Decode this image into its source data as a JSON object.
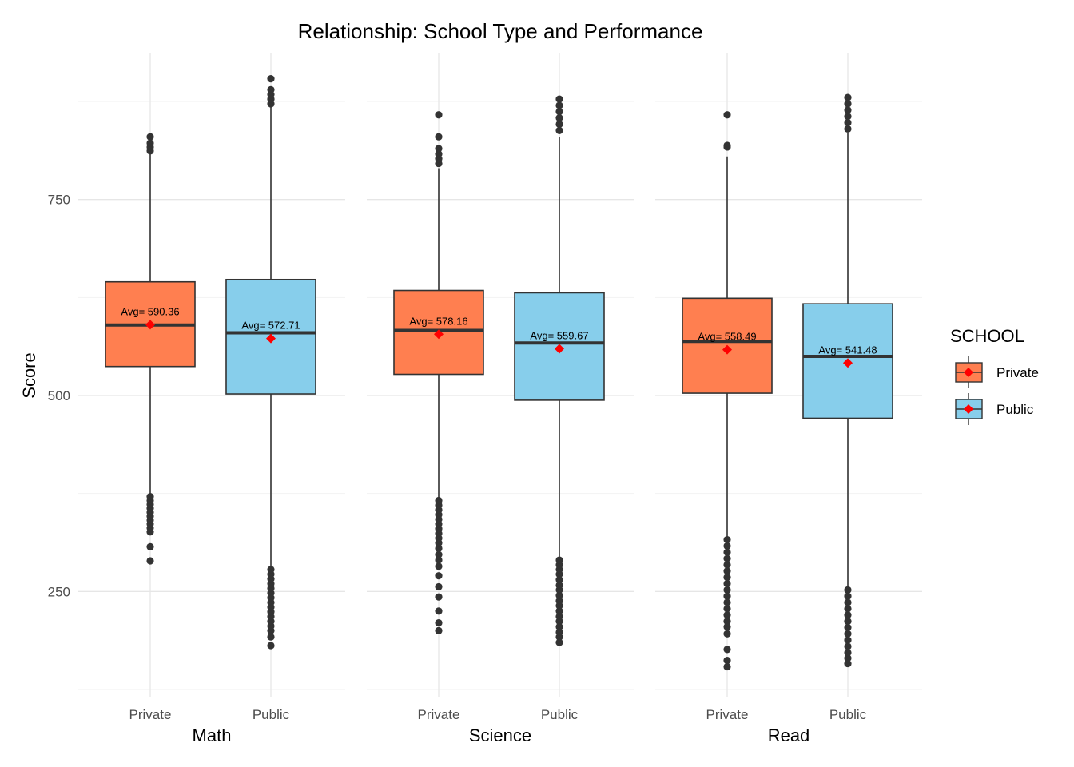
{
  "chart_data": {
    "type": "box",
    "title": "Relationship: School Type and Performance",
    "ylabel": "Score",
    "ylim": [
      120,
      920
    ],
    "yticks": [
      250,
      500,
      750
    ],
    "ygrid_minor": [
      125,
      375,
      625,
      875
    ],
    "groups": [
      "Private",
      "Public"
    ],
    "colors": {
      "Private": "#ff7f50",
      "Public": "#87ceeb"
    },
    "legend": {
      "title": "SCHOOL",
      "entries": [
        "Private",
        "Public"
      ],
      "position": "right"
    },
    "panels": [
      {
        "subject": "Math",
        "boxes": [
          {
            "group": "Private",
            "lower_whisker": 375,
            "q1": 537,
            "median": 590,
            "q3": 645,
            "upper_whisker": 810,
            "mean": 590.36,
            "avg_label": "Avg= 590.36",
            "outliers": [
              289,
              307,
              326,
              331,
              336,
              341,
              346,
              351,
              356,
              361,
              366,
              371,
              812,
              817,
              822,
              830
            ]
          },
          {
            "group": "Public",
            "lower_whisker": 280,
            "q1": 502,
            "median": 580,
            "q3": 648,
            "upper_whisker": 868,
            "mean": 572.71,
            "avg_label": "Avg= 572.71",
            "outliers": [
              181,
              192,
              200,
              206,
              212,
              218,
              224,
              230,
              236,
              242,
              248,
              254,
              260,
              266,
              272,
              278,
              872,
              878,
              884,
              890,
              904
            ]
          }
        ]
      },
      {
        "subject": "Science",
        "boxes": [
          {
            "group": "Private",
            "lower_whisker": 368,
            "q1": 527,
            "median": 583,
            "q3": 634,
            "upper_whisker": 790,
            "mean": 578.16,
            "avg_label": "Avg= 578.16",
            "outliers": [
              200,
              210,
              225,
              243,
              256,
              270,
              282,
              290,
              297,
              305,
              312,
              318,
              324,
              330,
              336,
              342,
              348,
              354,
              360,
              366,
              796,
              802,
              808,
              815,
              830,
              858
            ]
          },
          {
            "group": "Public",
            "lower_whisker": 292,
            "q1": 494,
            "median": 567,
            "q3": 631,
            "upper_whisker": 830,
            "mean": 559.67,
            "avg_label": "Avg= 559.67",
            "outliers": [
              185,
              192,
              198,
              205,
              212,
              218,
              225,
              232,
              238,
              245,
              252,
              258,
              265,
              272,
              278,
              284,
              290,
              838,
              846,
              854,
              862,
              870,
              878
            ]
          }
        ]
      },
      {
        "subject": "Read",
        "boxes": [
          {
            "group": "Private",
            "lower_whisker": 318,
            "q1": 503,
            "median": 569,
            "q3": 624,
            "upper_whisker": 805,
            "mean": 558.49,
            "avg_label": "Avg= 558.49",
            "outliers": [
              154,
              162,
              176,
              196,
              205,
              212,
              220,
              228,
              236,
              244,
              252,
              260,
              268,
              276,
              284,
              292,
              300,
              308,
              316,
              817,
              819,
              858
            ]
          },
          {
            "group": "Public",
            "lower_whisker": 256,
            "q1": 471,
            "median": 550,
            "q3": 617,
            "upper_whisker": 835,
            "mean": 541.48,
            "avg_label": "Avg= 541.48",
            "outliers": [
              158,
              165,
              172,
              180,
              188,
              196,
              204,
              212,
              220,
              228,
              236,
              244,
              252,
              840,
              848,
              856,
              864,
              872,
              880
            ]
          }
        ]
      }
    ]
  }
}
